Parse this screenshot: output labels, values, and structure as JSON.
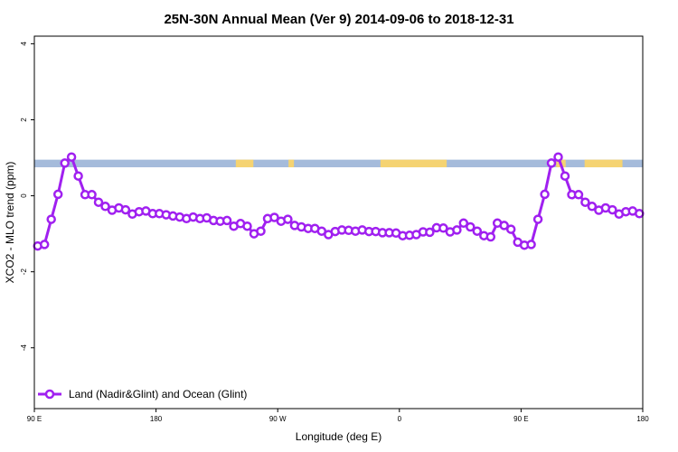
{
  "chart_data": {
    "type": "line",
    "title": "25N-30N Annual Mean (Ver 9)   2014-09-06 to 2018-12-31",
    "xlabel": "Longitude (deg E)",
    "ylabel": "XCO2 - MLO trend (ppm)",
    "xlim": [
      90,
      540
    ],
    "ylim": [
      -5.6,
      4.2
    ],
    "x_ticks": [
      {
        "value": 90,
        "label": "90 E"
      },
      {
        "value": 180,
        "label": "180"
      },
      {
        "value": 270,
        "label": "90 W"
      },
      {
        "value": 360,
        "label": "0"
      },
      {
        "value": 450,
        "label": "90 E"
      },
      {
        "value": 540,
        "label": "180"
      }
    ],
    "y_ticks": [
      {
        "value": 4,
        "label": "4"
      },
      {
        "value": 2,
        "label": "2"
      },
      {
        "value": 0,
        "label": "0"
      },
      {
        "value": -2,
        "label": "-2"
      },
      {
        "value": -4,
        "label": "-4"
      }
    ],
    "grid": false,
    "legend": {
      "position": "bottom-left",
      "entries": [
        "Land (Nadir&Glint) and Ocean (Glint)"
      ]
    },
    "band": {
      "y_range": [
        0.75,
        0.95
      ],
      "ocean_color": "#a5bbdb",
      "land_color": "#f5d372",
      "land_segments": [
        [
          239,
          252
        ],
        [
          278,
          282
        ],
        [
          346,
          395
        ],
        [
          476,
          483
        ],
        [
          497,
          525
        ]
      ]
    },
    "series": [
      {
        "name": "Land (Nadir&Glint) and Ocean (Glint)",
        "color": "#a020f0",
        "x": [
          92.5,
          97.5,
          102.5,
          107.5,
          112.5,
          117.5,
          122.5,
          127.5,
          132.5,
          137.5,
          142.5,
          147.5,
          152.5,
          157.5,
          162.5,
          167.5,
          172.5,
          177.5,
          182.5,
          187.5,
          192.5,
          197.5,
          202.5,
          207.5,
          212.5,
          217.5,
          222.5,
          227.5,
          232.5,
          237.5,
          242.5,
          247.5,
          252.5,
          257.5,
          262.5,
          267.5,
          272.5,
          277.5,
          282.5,
          287.5,
          292.5,
          297.5,
          302.5,
          307.5,
          312.5,
          317.5,
          322.5,
          327.5,
          332.5,
          337.5,
          342.5,
          347.5,
          352.5,
          357.5,
          362.5,
          367.5,
          372.5,
          377.5,
          382.5,
          387.5,
          392.5,
          397.5,
          402.5,
          407.5,
          412.5,
          417.5,
          422.5,
          427.5,
          432.5,
          437.5,
          442.5,
          447.5,
          452.5,
          457.5,
          462.5,
          467.5,
          472.5,
          477.5,
          482.5,
          487.5,
          492.5,
          497.5,
          502.5,
          507.5,
          512.5,
          517.5,
          522.5,
          527.5,
          532.5,
          537.5
        ],
        "y": [
          -1.32,
          -1.28,
          -0.62,
          0.04,
          0.86,
          1.02,
          0.52,
          0.03,
          0.03,
          -0.17,
          -0.28,
          -0.38,
          -0.32,
          -0.37,
          -0.48,
          -0.42,
          -0.4,
          -0.47,
          -0.47,
          -0.5,
          -0.53,
          -0.56,
          -0.6,
          -0.56,
          -0.6,
          -0.58,
          -0.65,
          -0.67,
          -0.65,
          -0.8,
          -0.73,
          -0.8,
          -1.0,
          -0.93,
          -0.6,
          -0.57,
          -0.67,
          -0.62,
          -0.78,
          -0.82,
          -0.86,
          -0.86,
          -0.93,
          -1.02,
          -0.94,
          -0.9,
          -0.91,
          -0.93,
          -0.9,
          -0.94,
          -0.94,
          -0.97,
          -0.97,
          -0.98,
          -1.05,
          -1.04,
          -1.02,
          -0.95,
          -0.96,
          -0.84,
          -0.85,
          -0.95,
          -0.9,
          -0.72,
          -0.82,
          -0.93,
          -1.05,
          -1.08,
          -0.72,
          -0.78,
          -0.88,
          -1.22,
          -1.3,
          -1.28,
          -0.62,
          0.04,
          0.86,
          1.02,
          0.52,
          0.03,
          0.03,
          -0.17,
          -0.28,
          -0.38,
          -0.32,
          -0.37,
          -0.48,
          -0.42,
          -0.4,
          -0.47
        ]
      }
    ]
  }
}
